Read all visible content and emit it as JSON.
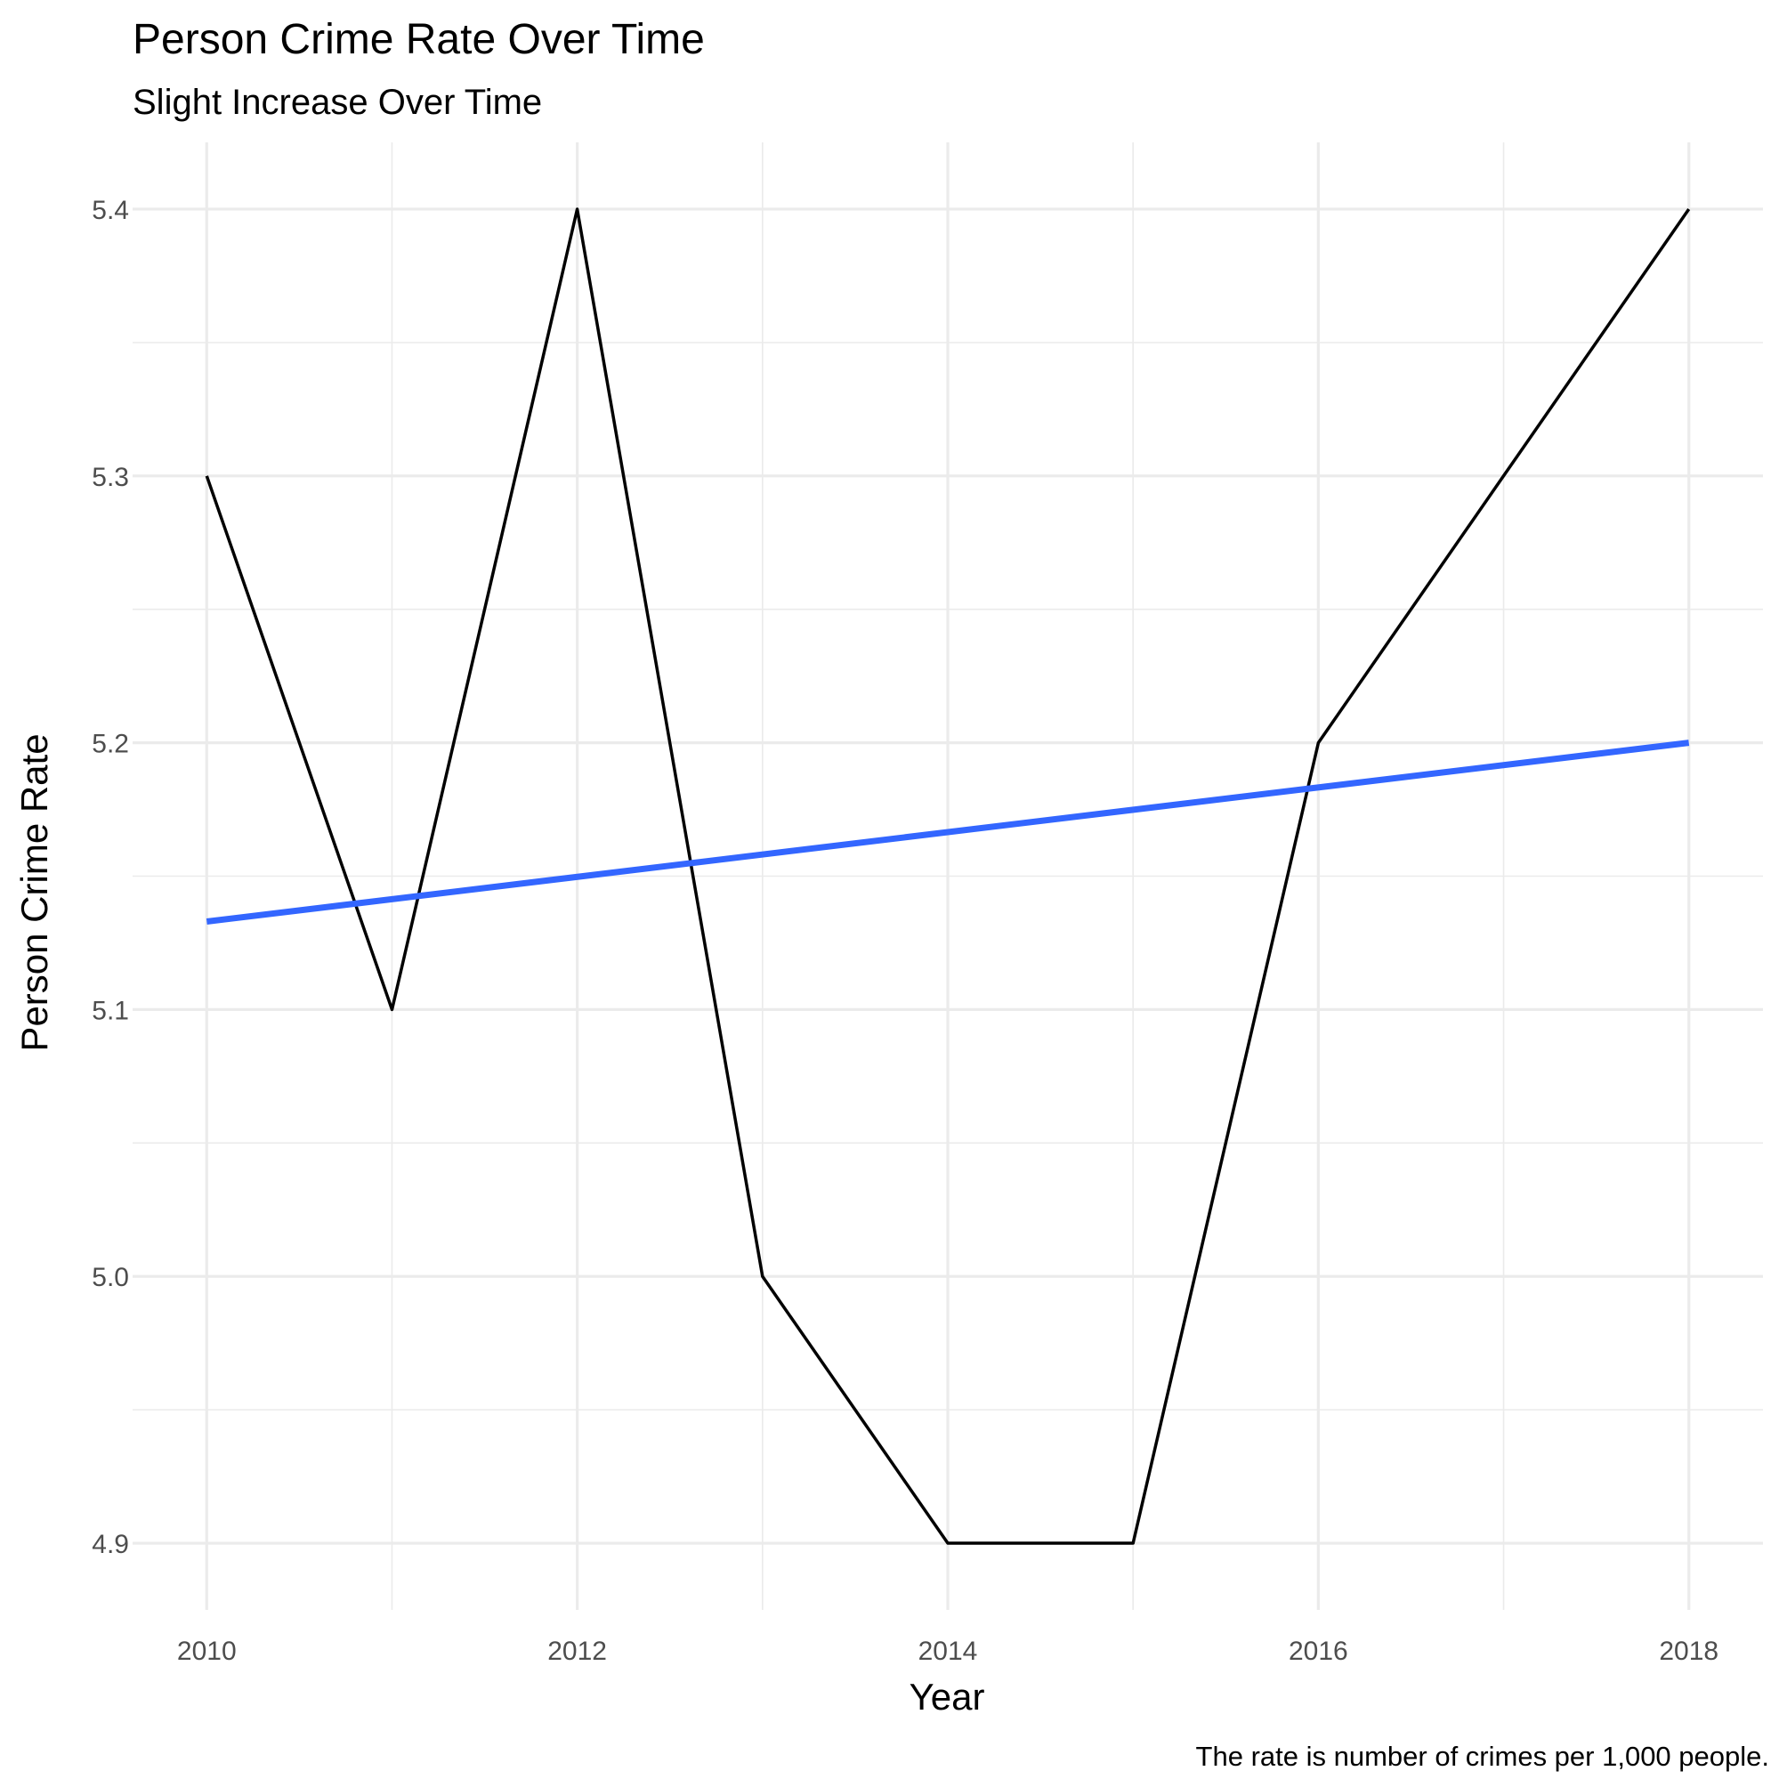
{
  "chart_data": {
    "type": "line",
    "title": "Person Crime Rate Over Time",
    "subtitle": "Slight Increase Over Time",
    "xlabel": "Year",
    "ylabel": "Person Crime Rate",
    "caption": "The rate is number of crimes per 1,000 people.",
    "x": [
      2010,
      2011,
      2012,
      2013,
      2014,
      2015,
      2016,
      2017,
      2018
    ],
    "series": [
      {
        "values": [
          5.3,
          5.1,
          5.4,
          5.0,
          4.9,
          4.9,
          5.2,
          5.3,
          5.4
        ],
        "color": "#000000"
      }
    ],
    "trend_line": {
      "x": [
        2010,
        2018
      ],
      "values": [
        5.133,
        5.2
      ],
      "color": "#3366FF"
    },
    "xlim": [
      2009.6,
      2018.4
    ],
    "ylim": [
      4.875,
      5.425
    ],
    "x_ticks": [
      2010,
      2012,
      2014,
      2016,
      2018
    ],
    "x_tick_labels": [
      "2010",
      "2012",
      "2014",
      "2016",
      "2018"
    ],
    "y_ticks": [
      4.9,
      5.0,
      5.1,
      5.2,
      5.3,
      5.4
    ],
    "y_tick_labels": [
      "4.9",
      "5.0",
      "5.1",
      "5.2",
      "5.3",
      "5.4"
    ],
    "grid": true,
    "legend": "none"
  }
}
